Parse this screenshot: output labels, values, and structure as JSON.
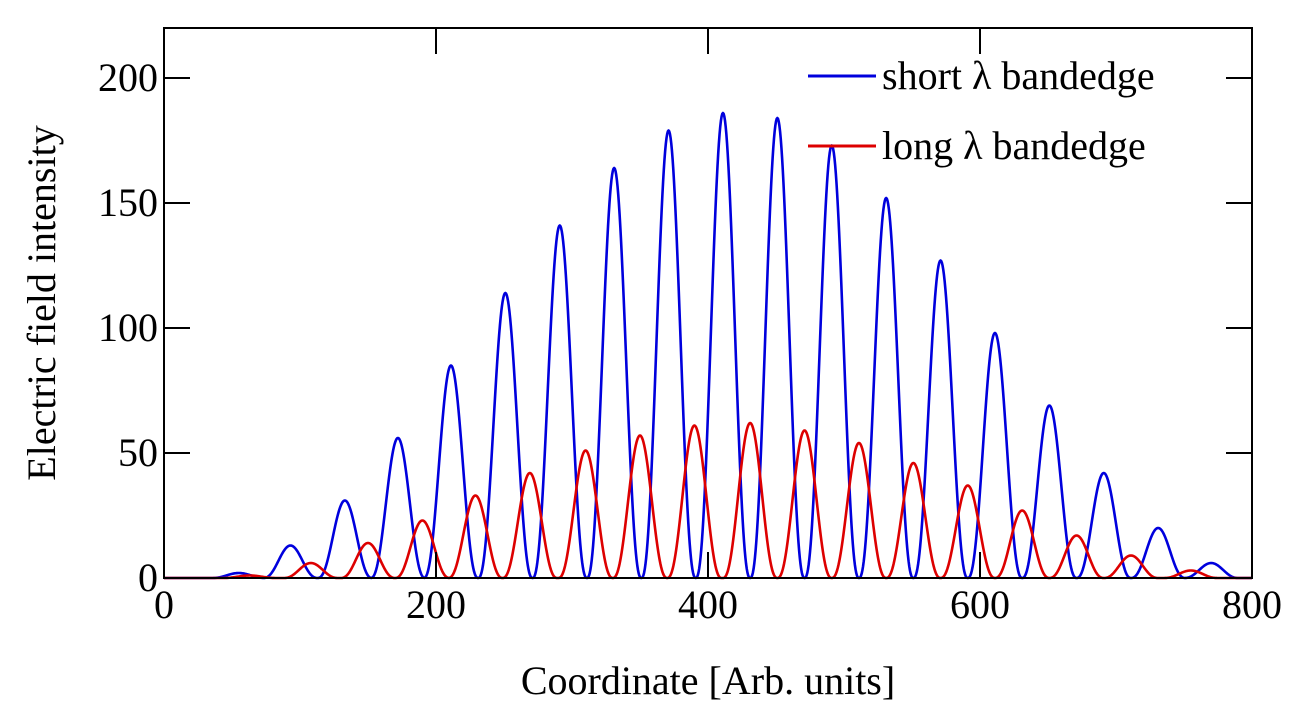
{
  "chart_data": {
    "type": "line",
    "title": "",
    "xlabel": "Coordinate [Arb. units]",
    "ylabel": "Electric field intensity",
    "xlim": [
      0,
      800
    ],
    "ylim": [
      0,
      220
    ],
    "xticks": [
      0,
      200,
      400,
      600,
      800
    ],
    "yticks": [
      0,
      50,
      100,
      150,
      200
    ],
    "xtick_labels": [
      "0",
      "200",
      "400",
      "600",
      "800"
    ],
    "ytick_labels": [
      "0",
      "50",
      "100",
      "150",
      "200"
    ],
    "grid": false,
    "legend_position": "top-right",
    "series": [
      {
        "name": "short λ bandedge",
        "color": "#0000dd",
        "peak_period": 40,
        "peaks": [
          {
            "x": 55,
            "y": 2
          },
          {
            "x": 93,
            "y": 13
          },
          {
            "x": 133,
            "y": 31
          },
          {
            "x": 172,
            "y": 56
          },
          {
            "x": 211,
            "y": 85
          },
          {
            "x": 251,
            "y": 114
          },
          {
            "x": 291,
            "y": 141
          },
          {
            "x": 331,
            "y": 164
          },
          {
            "x": 371,
            "y": 179
          },
          {
            "x": 411,
            "y": 186
          },
          {
            "x": 451,
            "y": 184
          },
          {
            "x": 491,
            "y": 173
          },
          {
            "x": 531,
            "y": 152
          },
          {
            "x": 571,
            "y": 127
          },
          {
            "x": 611,
            "y": 98
          },
          {
            "x": 651,
            "y": 69
          },
          {
            "x": 691,
            "y": 42
          },
          {
            "x": 731,
            "y": 20
          },
          {
            "x": 770,
            "y": 6
          }
        ]
      },
      {
        "name": "long λ bandedge",
        "color": "#dd0000",
        "peak_period": 40,
        "peaks": [
          {
            "x": 63,
            "y": 1
          },
          {
            "x": 108,
            "y": 6
          },
          {
            "x": 150,
            "y": 14
          },
          {
            "x": 190,
            "y": 23
          },
          {
            "x": 229,
            "y": 33
          },
          {
            "x": 269,
            "y": 42
          },
          {
            "x": 310,
            "y": 51
          },
          {
            "x": 350,
            "y": 57
          },
          {
            "x": 390,
            "y": 61
          },
          {
            "x": 431,
            "y": 62
          },
          {
            "x": 471,
            "y": 59
          },
          {
            "x": 511,
            "y": 54
          },
          {
            "x": 551,
            "y": 46
          },
          {
            "x": 591,
            "y": 37
          },
          {
            "x": 631,
            "y": 27
          },
          {
            "x": 671,
            "y": 17
          },
          {
            "x": 711,
            "y": 9
          },
          {
            "x": 755,
            "y": 3
          }
        ]
      }
    ]
  }
}
